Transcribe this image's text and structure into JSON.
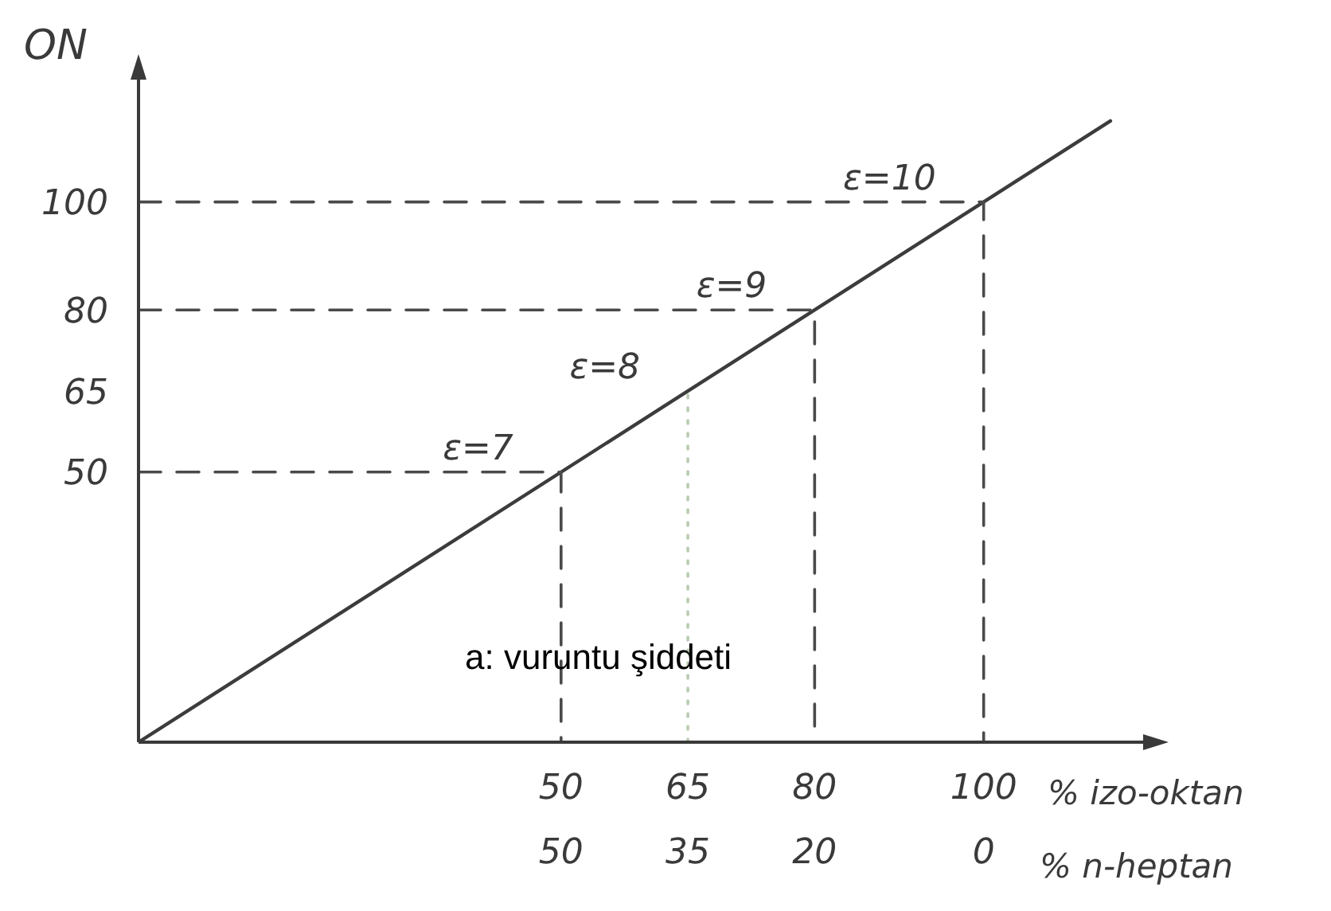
{
  "chart_data": {
    "type": "line",
    "ylabel": "ON",
    "xlabel": "% izo-oktan",
    "x2label": "% n-heptan",
    "xlim": [
      0,
      120
    ],
    "xticks": [
      50,
      65,
      80,
      100
    ],
    "x2lim": [
      100,
      -20
    ],
    "x2ticks": [
      50,
      35,
      20,
      0
    ],
    "ylim": [
      0,
      125
    ],
    "yticks": [
      50,
      65,
      80,
      100
    ],
    "marker": "none",
    "series": [
      {
        "color": "#3c3c3c",
        "x": [
          0,
          115
        ],
        "values": [
          0,
          115
        ]
      },
      {
        "color": "#4a4a4a",
        "line_style": "dashed",
        "x": [
          0,
          50,
          50
        ],
        "values": [
          50,
          50,
          0
        ]
      },
      {
        "color": "#b9ccb1",
        "line_style": "dotted",
        "x": [
          65,
          65
        ],
        "values": [
          0,
          65
        ]
      },
      {
        "color": "#4a4a4a",
        "line_style": "dashed",
        "x": [
          0,
          80,
          80
        ],
        "values": [
          80,
          80,
          0
        ]
      },
      {
        "color": "#4a4a4a",
        "line_style": "dashed",
        "x": [
          0,
          100,
          100
        ],
        "values": [
          100,
          100,
          0
        ]
      }
    ],
    "annotations": [
      {
        "text": "ε=7",
        "x": 50,
        "y": 50
      },
      {
        "text": "ε=8",
        "x": 65,
        "y": 65
      },
      {
        "text": "ε=9",
        "x": 80,
        "y": 80
      },
      {
        "text": "ε=10",
        "x": 100,
        "y": 100
      },
      "a: vuruntu şiddeti"
    ]
  }
}
